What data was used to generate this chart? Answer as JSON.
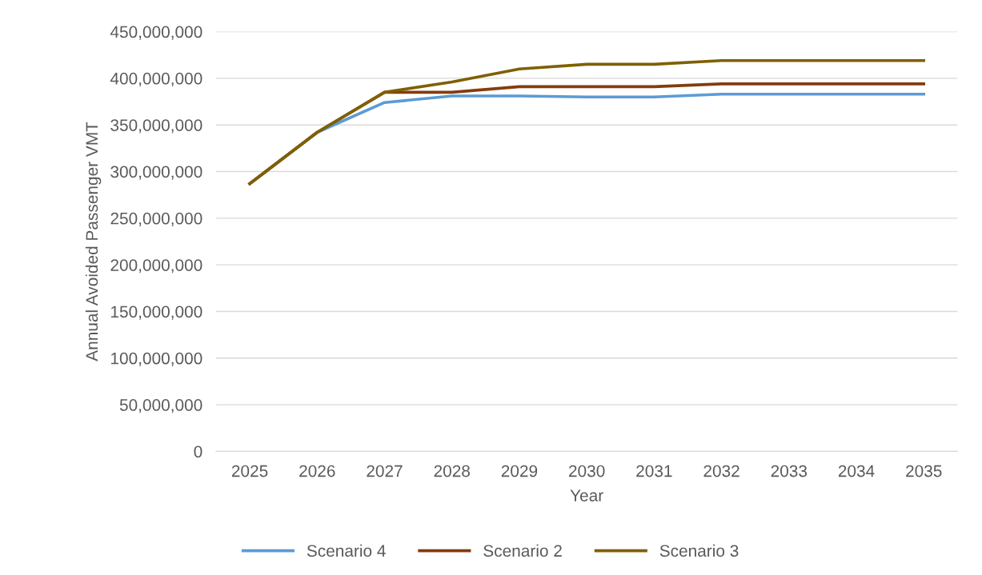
{
  "chart_data": {
    "type": "line",
    "xlabel": "Year",
    "ylabel": "Annual Avoided Passenger VMT",
    "categories": [
      "2025",
      "2026",
      "2027",
      "2028",
      "2029",
      "2030",
      "2031",
      "2032",
      "2033",
      "2034",
      "2035"
    ],
    "series": [
      {
        "name": "Scenario 4",
        "color": "#5b9bd5",
        "values": [
          287000000,
          342000000,
          374000000,
          381000000,
          381000000,
          380000000,
          380000000,
          383000000,
          383000000,
          383000000,
          383000000
        ]
      },
      {
        "name": "Scenario 2",
        "color": "#843c0c",
        "values": [
          287000000,
          342000000,
          385000000,
          385000000,
          391000000,
          391000000,
          391000000,
          394000000,
          394000000,
          394000000,
          394000000
        ]
      },
      {
        "name": "Scenario 3",
        "color": "#7f6000",
        "values": [
          287000000,
          342000000,
          385000000,
          396000000,
          410000000,
          415000000,
          415000000,
          419000000,
          419000000,
          419000000,
          419000000
        ]
      }
    ],
    "ylim": [
      0,
      450000000
    ],
    "yticks": [
      0,
      {
        "value": 50000000,
        "label": "50,000,000"
      },
      {
        "value": 100000000,
        "label": "100,000,000"
      },
      {
        "value": 150000000,
        "label": "150,000,000"
      },
      {
        "value": 200000000,
        "label": "200,000,000"
      },
      {
        "value": 250000000,
        "label": "250,000,000"
      },
      {
        "value": 300000000,
        "label": "300,000,000"
      },
      {
        "value": 350000000,
        "label": "350,000,000"
      },
      {
        "value": 400000000,
        "label": "400,000,000"
      },
      {
        "value": 450000000,
        "label": "450,000,000"
      }
    ],
    "grid": "y",
    "legend": "bottom",
    "marker": "none",
    "line_style": "solid"
  }
}
